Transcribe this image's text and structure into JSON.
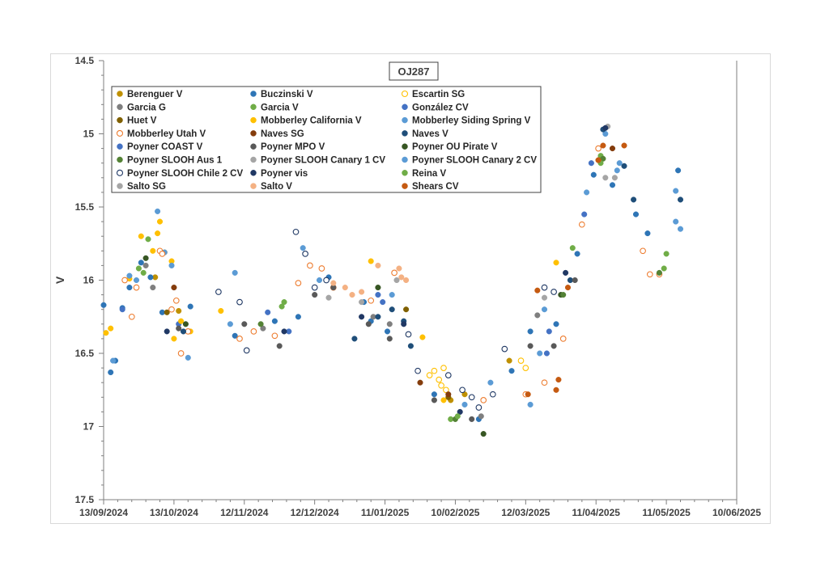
{
  "chart_data": {
    "type": "scatter",
    "title": "OJ287",
    "xlabel": "",
    "ylabel": "V",
    "ylim": [
      17.5,
      14.5
    ],
    "y_inverted": true,
    "xlim": [
      "2024-09-13",
      "2025-06-10"
    ],
    "x_ticks": [
      "13/09/2024",
      "13/10/2024",
      "12/11/2024",
      "12/12/2024",
      "11/01/2025",
      "10/02/2025",
      "12/03/2025",
      "11/04/2025",
      "11/05/2025",
      "10/06/2025"
    ],
    "y_ticks": [
      "14.5",
      "15",
      "15.5",
      "16",
      "16.5",
      "17",
      "17.5"
    ],
    "grid": false,
    "legend_position": "top-left inside",
    "series": [
      {
        "name": "Berenguer V",
        "color": "#bf9000",
        "filled": true,
        "points": [
          [
            "2024-10-05",
            15.98
          ],
          [
            "2024-10-15",
            16.21
          ],
          [
            "2025-02-08",
            16.82
          ],
          [
            "2025-02-14",
            16.78
          ],
          [
            "2025-03-05",
            16.55
          ]
        ]
      },
      {
        "name": "Buczinski V",
        "color": "#2e75b6",
        "filled": true,
        "points": [
          [
            "2024-09-13",
            16.17
          ],
          [
            "2024-09-16",
            16.63
          ],
          [
            "2024-09-18",
            16.55
          ],
          [
            "2024-09-21",
            16.19
          ],
          [
            "2024-09-24",
            16.05
          ],
          [
            "2024-09-29",
            15.88
          ],
          [
            "2024-10-03",
            15.98
          ],
          [
            "2024-10-08",
            16.22
          ],
          [
            "2024-10-20",
            16.18
          ],
          [
            "2024-11-08",
            16.38
          ],
          [
            "2024-11-25",
            16.28
          ],
          [
            "2024-12-05",
            16.25
          ],
          [
            "2024-12-18",
            15.98
          ],
          [
            "2025-01-02",
            16.15
          ],
          [
            "2025-01-05",
            16.28
          ],
          [
            "2025-01-12",
            16.35
          ],
          [
            "2025-02-01",
            16.78
          ],
          [
            "2025-02-20",
            16.95
          ],
          [
            "2025-03-06",
            16.62
          ],
          [
            "2025-03-14",
            16.35
          ],
          [
            "2025-03-25",
            16.3
          ],
          [
            "2025-04-03",
            15.82
          ],
          [
            "2025-04-10",
            15.28
          ],
          [
            "2025-04-18",
            15.35
          ],
          [
            "2025-04-28",
            15.55
          ],
          [
            "2025-05-03",
            15.68
          ],
          [
            "2025-05-16",
            15.25
          ]
        ]
      },
      {
        "name": "Escartin SG",
        "color": "#ffc000",
        "filled": false,
        "points": [
          [
            "2025-01-30",
            16.65
          ],
          [
            "2025-02-01",
            16.62
          ],
          [
            "2025-02-03",
            16.68
          ],
          [
            "2025-02-04",
            16.72
          ],
          [
            "2025-02-05",
            16.6
          ],
          [
            "2025-02-06",
            16.75
          ],
          [
            "2025-03-10",
            16.55
          ],
          [
            "2025-03-12",
            16.6
          ]
        ]
      },
      {
        "name": "Garcia G",
        "color": "#7f7f7f",
        "filled": true,
        "points": [
          [
            "2024-10-01",
            15.9
          ],
          [
            "2024-10-04",
            16.05
          ],
          [
            "2024-11-20",
            16.33
          ],
          [
            "2025-01-06",
            16.25
          ],
          [
            "2025-01-13",
            16.3
          ],
          [
            "2025-02-21",
            16.93
          ],
          [
            "2025-03-17",
            16.24
          ]
        ]
      },
      {
        "name": "Garcia V",
        "color": "#70ad47",
        "filled": true,
        "points": [
          [
            "2024-09-28",
            15.92
          ],
          [
            "2024-10-02",
            15.72
          ],
          [
            "2024-11-28",
            16.18
          ],
          [
            "2025-02-08",
            16.95
          ],
          [
            "2025-04-01",
            15.78
          ],
          [
            "2025-04-13",
            15.15
          ],
          [
            "2025-05-10",
            15.92
          ]
        ]
      },
      {
        "name": "González CV",
        "color": "#4472c4",
        "filled": true,
        "points": [
          [
            "2024-10-15",
            16.3
          ],
          [
            "2024-11-22",
            16.22
          ],
          [
            "2025-01-08",
            16.1
          ],
          [
            "2025-02-17",
            16.8
          ],
          [
            "2025-03-22",
            16.35
          ],
          [
            "2025-04-06",
            15.55
          ]
        ]
      },
      {
        "name": "Huet V",
        "color": "#806000",
        "filled": true,
        "points": [
          [
            "2024-10-10",
            16.22
          ],
          [
            "2025-01-20",
            16.2
          ],
          [
            "2025-02-07",
            16.8
          ]
        ]
      },
      {
        "name": "Mobberley California V",
        "color": "#ffc000",
        "filled": true,
        "points": [
          [
            "2024-09-14",
            16.36
          ],
          [
            "2024-09-16",
            16.33
          ],
          [
            "2024-09-24",
            15.99
          ],
          [
            "2024-09-29",
            15.7
          ],
          [
            "2024-10-04",
            15.8
          ],
          [
            "2024-10-06",
            15.68
          ],
          [
            "2024-10-07",
            15.6
          ],
          [
            "2024-10-09",
            15.81
          ],
          [
            "2024-10-12",
            15.87
          ],
          [
            "2024-10-13",
            16.4
          ],
          [
            "2024-10-16",
            16.28
          ],
          [
            "2024-10-20",
            16.35
          ],
          [
            "2024-11-02",
            16.21
          ],
          [
            "2025-01-05",
            15.87
          ],
          [
            "2025-01-27",
            16.39
          ],
          [
            "2025-02-05",
            16.82
          ],
          [
            "2025-03-25",
            15.88
          ]
        ]
      },
      {
        "name": "Mobberley Siding Spring V",
        "color": "#5b9bd5",
        "filled": true,
        "points": [
          [
            "2024-09-17",
            16.55
          ],
          [
            "2024-09-24",
            15.97
          ],
          [
            "2024-09-27",
            16.0
          ],
          [
            "2024-10-06",
            15.53
          ],
          [
            "2024-10-09",
            15.81
          ],
          [
            "2024-10-12",
            15.9
          ],
          [
            "2024-10-19",
            16.53
          ],
          [
            "2024-11-08",
            15.95
          ],
          [
            "2024-12-07",
            15.78
          ],
          [
            "2024-12-20",
            16.05
          ],
          [
            "2025-02-14",
            16.85
          ],
          [
            "2025-03-14",
            16.85
          ],
          [
            "2025-03-20",
            16.2
          ],
          [
            "2025-04-15",
            15.0
          ],
          [
            "2025-04-20",
            15.25
          ],
          [
            "2025-05-15",
            15.6
          ],
          [
            "2025-05-17",
            15.65
          ]
        ]
      },
      {
        "name": "Mobberley Utah V",
        "color": "#ed7d31",
        "filled": false,
        "points": [
          [
            "2024-09-22",
            16.0
          ],
          [
            "2024-09-25",
            16.25
          ],
          [
            "2024-09-27",
            16.05
          ],
          [
            "2024-10-07",
            15.8
          ],
          [
            "2024-10-08",
            15.82
          ],
          [
            "2024-10-12",
            16.2
          ],
          [
            "2024-10-14",
            16.14
          ],
          [
            "2024-10-16",
            16.5
          ],
          [
            "2024-10-19",
            16.35
          ],
          [
            "2024-11-10",
            16.4
          ],
          [
            "2024-11-16",
            16.35
          ],
          [
            "2024-11-25",
            16.38
          ],
          [
            "2024-12-05",
            16.02
          ],
          [
            "2024-12-10",
            15.9
          ],
          [
            "2024-12-15",
            15.92
          ],
          [
            "2024-12-20",
            16.05
          ],
          [
            "2025-01-05",
            16.14
          ],
          [
            "2025-01-15",
            15.95
          ],
          [
            "2025-02-22",
            16.82
          ],
          [
            "2025-03-12",
            16.78
          ],
          [
            "2025-03-20",
            16.7
          ],
          [
            "2025-03-28",
            16.4
          ],
          [
            "2025-04-05",
            15.62
          ],
          [
            "2025-04-12",
            15.1
          ],
          [
            "2025-05-01",
            15.8
          ],
          [
            "2025-05-04",
            15.96
          ],
          [
            "2025-05-08",
            15.96
          ]
        ]
      },
      {
        "name": "Naves SG",
        "color": "#843c0c",
        "filled": true,
        "points": [
          [
            "2024-10-13",
            16.05
          ],
          [
            "2025-01-26",
            16.7
          ],
          [
            "2025-02-07",
            16.78
          ],
          [
            "2025-04-12",
            15.18
          ],
          [
            "2025-04-18",
            15.1
          ]
        ]
      },
      {
        "name": "Naves V",
        "color": "#1f4e79",
        "filled": true,
        "points": [
          [
            "2024-10-17",
            16.35
          ],
          [
            "2024-12-29",
            16.4
          ],
          [
            "2025-01-08",
            16.25
          ],
          [
            "2025-01-14",
            16.2
          ],
          [
            "2025-01-19",
            16.28
          ],
          [
            "2025-01-22",
            16.45
          ],
          [
            "2025-03-31",
            16.0
          ],
          [
            "2025-04-14",
            14.97
          ],
          [
            "2025-04-23",
            15.22
          ],
          [
            "2025-04-27",
            15.45
          ],
          [
            "2025-05-17",
            15.45
          ]
        ]
      },
      {
        "name": "Poyner COAST V",
        "color": "#4472c4",
        "filled": true,
        "points": [
          [
            "2024-09-21",
            16.2
          ],
          [
            "2024-12-01",
            16.35
          ],
          [
            "2025-01-10",
            16.15
          ],
          [
            "2025-03-21",
            16.5
          ],
          [
            "2025-04-09",
            15.2
          ]
        ]
      },
      {
        "name": "Poyner MPO V",
        "color": "#595959",
        "filled": true,
        "points": [
          [
            "2024-10-15",
            16.33
          ],
          [
            "2024-11-12",
            16.3
          ],
          [
            "2024-11-27",
            16.45
          ],
          [
            "2024-12-12",
            16.1
          ],
          [
            "2024-12-20",
            16.05
          ],
          [
            "2025-01-04",
            16.3
          ],
          [
            "2025-01-13",
            16.4
          ],
          [
            "2025-02-01",
            16.82
          ],
          [
            "2025-02-17",
            16.95
          ],
          [
            "2025-03-14",
            16.45
          ],
          [
            "2025-03-24",
            16.45
          ],
          [
            "2025-04-02",
            16.0
          ]
        ]
      },
      {
        "name": "Poyner OU Pirate V",
        "color": "#375623",
        "filled": true,
        "points": [
          [
            "2024-10-01",
            15.85
          ],
          [
            "2024-10-18",
            16.3
          ],
          [
            "2025-01-08",
            16.05
          ],
          [
            "2025-02-22",
            17.05
          ],
          [
            "2025-03-27",
            16.1
          ]
        ]
      },
      {
        "name": "Poyner SLOOH Aus 1",
        "color": "#548235",
        "filled": true,
        "points": [
          [
            "2024-11-19",
            16.3
          ],
          [
            "2025-02-10",
            16.95
          ],
          [
            "2025-03-28",
            16.1
          ],
          [
            "2025-04-14",
            15.17
          ],
          [
            "2025-05-08",
            15.95
          ]
        ]
      },
      {
        "name": "Poyner SLOOH Canary 1 CV",
        "color": "#a5a5a5",
        "filled": true,
        "points": [
          [
            "2024-12-18",
            16.12
          ],
          [
            "2025-01-16",
            16.0
          ],
          [
            "2025-03-20",
            16.12
          ],
          [
            "2025-04-16",
            14.95
          ],
          [
            "2025-04-19",
            15.3
          ]
        ]
      },
      {
        "name": "Poyner SLOOH Canary 2 CV",
        "color": "#5b9bd5",
        "filled": true,
        "points": [
          [
            "2024-11-06",
            16.3
          ],
          [
            "2024-12-14",
            16.0
          ],
          [
            "2025-01-14",
            16.1
          ],
          [
            "2025-02-25",
            16.7
          ],
          [
            "2025-03-18",
            16.5
          ],
          [
            "2025-04-07",
            15.4
          ],
          [
            "2025-04-21",
            15.2
          ],
          [
            "2025-05-15",
            15.39
          ]
        ]
      },
      {
        "name": "Poyner SLOOH Chile 2 CV",
        "color": "#1f3864",
        "filled": false,
        "points": [
          [
            "2024-11-01",
            16.08
          ],
          [
            "2024-11-10",
            16.15
          ],
          [
            "2024-11-13",
            16.48
          ],
          [
            "2024-12-04",
            15.67
          ],
          [
            "2024-12-08",
            15.82
          ],
          [
            "2024-12-12",
            16.05
          ],
          [
            "2024-12-17",
            16.0
          ],
          [
            "2025-01-21",
            16.37
          ],
          [
            "2025-01-25",
            16.62
          ],
          [
            "2025-02-07",
            16.65
          ],
          [
            "2025-02-13",
            16.75
          ],
          [
            "2025-02-17",
            16.8
          ],
          [
            "2025-02-20",
            16.87
          ],
          [
            "2025-02-26",
            16.78
          ],
          [
            "2025-03-03",
            16.47
          ],
          [
            "2025-03-20",
            16.05
          ],
          [
            "2025-03-24",
            16.08
          ]
        ]
      },
      {
        "name": "Poyner vis",
        "color": "#203864",
        "filled": true,
        "points": [
          [
            "2024-10-10",
            16.35
          ],
          [
            "2024-11-29",
            16.35
          ],
          [
            "2025-01-01",
            16.25
          ],
          [
            "2025-01-19",
            16.3
          ],
          [
            "2025-02-12",
            16.9
          ],
          [
            "2025-03-29",
            15.95
          ],
          [
            "2025-04-15",
            14.96
          ]
        ]
      },
      {
        "name": "Reina V",
        "color": "#70ad47",
        "filled": true,
        "points": [
          [
            "2024-09-30",
            15.95
          ],
          [
            "2024-11-29",
            16.15
          ],
          [
            "2025-02-11",
            16.93
          ],
          [
            "2025-04-13",
            15.2
          ],
          [
            "2025-05-11",
            15.82
          ]
        ]
      },
      {
        "name": "Salto SG",
        "color": "#a5a5a5",
        "filled": true,
        "points": [
          [
            "2025-01-01",
            16.15
          ],
          [
            "2025-04-15",
            15.3
          ]
        ]
      },
      {
        "name": "Salto V",
        "color": "#f4b183",
        "filled": true,
        "points": [
          [
            "2024-12-20",
            16.02
          ],
          [
            "2024-12-25",
            16.05
          ],
          [
            "2024-12-28",
            16.1
          ],
          [
            "2025-01-01",
            16.08
          ],
          [
            "2025-01-08",
            15.9
          ],
          [
            "2025-01-17",
            15.92
          ],
          [
            "2025-01-18",
            15.98
          ],
          [
            "2025-01-20",
            16.0
          ]
        ]
      },
      {
        "name": "Shears CV",
        "color": "#c55a11",
        "filled": true,
        "points": [
          [
            "2025-03-13",
            16.78
          ],
          [
            "2025-03-17",
            16.07
          ],
          [
            "2025-03-25",
            16.75
          ],
          [
            "2025-03-26",
            16.68
          ],
          [
            "2025-03-30",
            16.05
          ],
          [
            "2025-04-12",
            15.18
          ],
          [
            "2025-04-14",
            15.08
          ],
          [
            "2025-04-23",
            15.08
          ]
        ]
      }
    ]
  }
}
